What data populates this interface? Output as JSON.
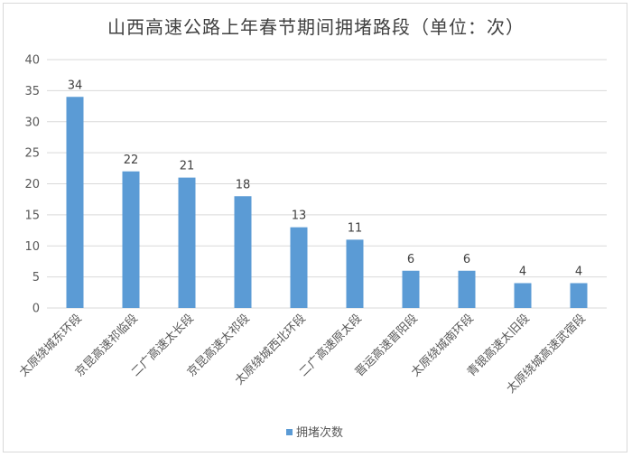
{
  "colors": {
    "bar": "#5b9bd5",
    "grid": "#d9d9d9",
    "text": "#595959",
    "title": "#404040"
  },
  "chart_data": {
    "type": "bar",
    "title": "山西高速公路上年春节期间拥堵路段（单位：次）",
    "categories": [
      "太原绕城东环段",
      "京昆高速祁临段",
      "二广高速太长段",
      "京昆高速太祁段",
      "太原绕城西北环段",
      "二广高速原太段",
      "晋运高速晋阳段",
      "太原绕城南环段",
      "青银高速太旧段",
      "太原绕城高速武宿段"
    ],
    "series": [
      {
        "name": "拥堵次数",
        "values": [
          34,
          22,
          21,
          18,
          13,
          11,
          6,
          6,
          4,
          4
        ]
      }
    ],
    "ylim": [
      0,
      40
    ],
    "yticks": [
      0,
      5,
      10,
      15,
      20,
      25,
      30,
      35,
      40
    ],
    "grid": true,
    "legend_position": "bottom"
  }
}
